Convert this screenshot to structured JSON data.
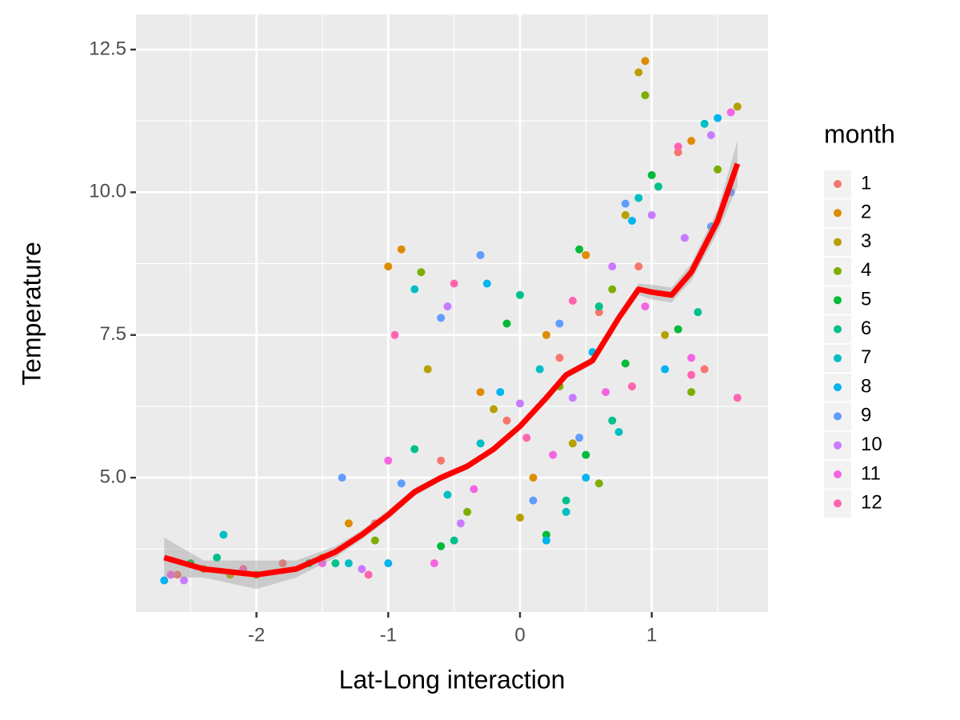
{
  "chart_data": {
    "type": "scatter",
    "x_label": "Lat-Long interaction",
    "y_label": "Temperature",
    "legend_title": "month",
    "xlim": [
      -2.914,
      1.882
    ],
    "ylim": [
      2.647,
      13.116
    ],
    "xticks": [
      -2,
      -1,
      0,
      1
    ],
    "yticks": [
      {
        "value": 5,
        "label": "5.0"
      },
      {
        "value": 7.5,
        "label": "7.5"
      },
      {
        "value": 10,
        "label": "10.0"
      },
      {
        "value": 12.5,
        "label": "12.5"
      }
    ],
    "minor_xticks": [
      -2.5,
      -1.5,
      -0.5,
      0.5,
      1.5
    ],
    "minor_yticks": [
      3.75,
      6.25,
      8.75,
      11.25
    ],
    "grid": true,
    "legend_position": "right",
    "series": [
      {
        "name": "1",
        "color": "#F8766D",
        "x": [
          -2.6,
          -1.8,
          -1.1,
          -0.6,
          -0.1,
          0.3,
          0.6,
          0.9,
          1.2,
          1.4
        ],
        "y": [
          3.3,
          3.5,
          4.2,
          5.3,
          6.0,
          7.1,
          7.9,
          8.7,
          10.7,
          6.9
        ]
      },
      {
        "name": "2",
        "color": "#DE8C00",
        "x": [
          -2.4,
          -0.9,
          -1.0,
          -0.3,
          0.2,
          0.5,
          0.95,
          1.3,
          -1.3,
          0.1
        ],
        "y": [
          3.4,
          9.0,
          8.7,
          6.5,
          7.5,
          8.9,
          12.3,
          10.9,
          4.2,
          5.0
        ]
      },
      {
        "name": "3",
        "color": "#B79F00",
        "x": [
          -2.2,
          -0.7,
          -0.2,
          0.4,
          0.9,
          1.65,
          0.8,
          -1.5,
          0.0,
          1.1
        ],
        "y": [
          3.3,
          6.9,
          6.2,
          5.6,
          12.1,
          11.5,
          9.6,
          3.6,
          4.3,
          7.5
        ]
      },
      {
        "name": "4",
        "color": "#7CAE00",
        "x": [
          -2.0,
          -0.75,
          -0.4,
          0.3,
          0.6,
          0.95,
          1.3,
          1.5,
          -1.1,
          0.7
        ],
        "y": [
          3.3,
          8.6,
          4.4,
          6.6,
          4.9,
          11.7,
          6.5,
          10.4,
          3.9,
          8.3
        ]
      },
      {
        "name": "5",
        "color": "#00BA38",
        "x": [
          -2.5,
          -1.6,
          -0.6,
          0.2,
          0.5,
          0.8,
          1.0,
          1.2,
          -0.1,
          0.45
        ],
        "y": [
          3.5,
          3.5,
          3.8,
          4.0,
          5.4,
          7.0,
          10.3,
          7.6,
          7.7,
          9.0
        ]
      },
      {
        "name": "6",
        "color": "#00C08B",
        "x": [
          -2.3,
          -1.4,
          -0.5,
          0.0,
          0.35,
          0.7,
          1.05,
          1.35,
          -0.8,
          0.6
        ],
        "y": [
          3.6,
          3.5,
          3.9,
          8.2,
          4.6,
          6.0,
          10.1,
          7.9,
          5.5,
          8.0
        ]
      },
      {
        "name": "7",
        "color": "#00BFC4",
        "x": [
          -2.25,
          -1.3,
          -0.8,
          -0.3,
          0.35,
          0.75,
          0.9,
          1.4,
          0.15,
          -0.55
        ],
        "y": [
          4.0,
          3.5,
          8.3,
          5.6,
          4.4,
          5.8,
          9.9,
          11.2,
          6.9,
          4.7
        ]
      },
      {
        "name": "8",
        "color": "#00B4F0",
        "x": [
          -2.7,
          -1.0,
          -0.25,
          0.2,
          0.5,
          0.85,
          1.1,
          1.5,
          -0.15,
          0.55
        ],
        "y": [
          3.2,
          3.5,
          8.4,
          3.9,
          5.0,
          9.5,
          6.9,
          11.3,
          6.5,
          7.2
        ]
      },
      {
        "name": "9",
        "color": "#619CFF",
        "x": [
          -1.35,
          -0.3,
          -0.6,
          0.1,
          0.45,
          0.8,
          1.45,
          1.6,
          -0.9,
          0.3
        ],
        "y": [
          5.0,
          8.9,
          7.8,
          4.6,
          5.7,
          9.8,
          9.4,
          10.0,
          4.9,
          7.7
        ]
      },
      {
        "name": "10",
        "color": "#C77CFF",
        "x": [
          -2.55,
          -1.2,
          -0.55,
          0.0,
          0.4,
          0.7,
          1.0,
          1.25,
          -0.45,
          1.45
        ],
        "y": [
          3.2,
          3.4,
          8.0,
          6.3,
          6.4,
          8.7,
          9.6,
          9.2,
          4.2,
          11.0
        ]
      },
      {
        "name": "11",
        "color": "#F564E3",
        "x": [
          -2.65,
          -1.5,
          -1.0,
          -0.35,
          0.25,
          0.65,
          0.95,
          1.6,
          -0.65,
          1.3
        ],
        "y": [
          3.3,
          3.5,
          5.3,
          4.8,
          5.4,
          6.5,
          8.0,
          11.4,
          3.5,
          7.1
        ]
      },
      {
        "name": "12",
        "color": "#FF64B0",
        "x": [
          -2.1,
          -1.15,
          -0.95,
          -0.5,
          0.05,
          0.4,
          0.85,
          1.3,
          1.65,
          1.2
        ],
        "y": [
          3.4,
          3.3,
          7.5,
          8.4,
          5.7,
          8.1,
          6.6,
          6.8,
          6.4,
          10.8
        ]
      }
    ],
    "smooth": {
      "color": "#FF0000",
      "band_color": "#999999",
      "x": [
        -2.7,
        -2.4,
        -2.0,
        -1.7,
        -1.4,
        -1.2,
        -1.0,
        -0.8,
        -0.6,
        -0.4,
        -0.2,
        0,
        0.2,
        0.35,
        0.55,
        0.75,
        0.9,
        1.0,
        1.15,
        1.3,
        1.5,
        1.65
      ],
      "y": [
        3.6,
        3.4,
        3.3,
        3.4,
        3.7,
        4.0,
        4.35,
        4.75,
        5.0,
        5.2,
        5.5,
        5.9,
        6.4,
        6.8,
        7.05,
        7.8,
        8.3,
        8.25,
        8.2,
        8.6,
        9.5,
        10.5
      ],
      "lower": [
        3.25,
        3.25,
        3.05,
        3.25,
        3.6,
        3.92,
        4.27,
        4.68,
        4.94,
        5.14,
        5.45,
        5.85,
        6.35,
        6.74,
        6.98,
        7.72,
        8.2,
        8.12,
        8.07,
        8.45,
        9.3,
        10.1
      ],
      "upper": [
        3.95,
        3.55,
        3.55,
        3.55,
        3.8,
        4.08,
        4.43,
        4.82,
        5.06,
        5.26,
        5.55,
        5.95,
        6.45,
        6.86,
        7.12,
        7.88,
        8.4,
        8.38,
        8.33,
        8.75,
        9.7,
        10.9
      ]
    }
  }
}
